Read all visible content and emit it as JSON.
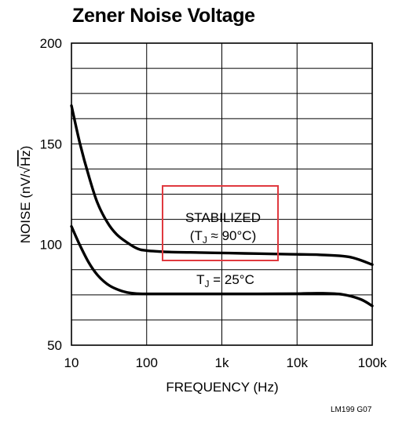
{
  "title": "Zener Noise Voltage",
  "footnote": "LM199 G07",
  "chart_data": {
    "type": "line",
    "title": "Zener Noise Voltage",
    "xlabel": "FREQUENCY (Hz)",
    "ylabel": "NOISE (nV/√Hz)",
    "xscale": "log",
    "xlim": [
      10,
      100000
    ],
    "ylim": [
      50,
      200
    ],
    "xticks": [
      10,
      100,
      1000,
      10000,
      100000
    ],
    "xtick_labels": [
      "10",
      "100",
      "1k",
      "10k",
      "100k"
    ],
    "yticks": [
      50,
      100,
      150,
      200
    ],
    "ytick_labels": [
      "50",
      "100",
      "150",
      "200"
    ],
    "grid": true,
    "series": [
      {
        "name": "STABILIZED (TJ ≈ 90°C)",
        "x": [
          10,
          13,
          17,
          22,
          30,
          40,
          55,
          75,
          100,
          200,
          500,
          1000,
          2000,
          5000,
          10000,
          20000,
          50000,
          100000
        ],
        "y": [
          169,
          150,
          134,
          121,
          111,
          105,
          101,
          98,
          97,
          96.3,
          96,
          95.8,
          95.6,
          95.3,
          95.1,
          94.9,
          93.8,
          90
        ]
      },
      {
        "name": "TJ = 25°C",
        "x": [
          10,
          13,
          17,
          22,
          30,
          40,
          55,
          75,
          100,
          300,
          1000,
          3000,
          10000,
          20000,
          40000,
          70000,
          100000
        ],
        "y": [
          109,
          99.5,
          91,
          85,
          80.3,
          77.8,
          76.2,
          75.6,
          75.5,
          75.5,
          75.5,
          75.5,
          75.6,
          75.8,
          75.2,
          72.8,
          69.5
        ]
      }
    ],
    "annotations": {
      "box_line1": "STABILIZED",
      "box_line2_pre": "(T",
      "box_line2_sub": "J",
      "box_line2_post": " ≈ 90°C)",
      "label_pre": "T",
      "label_sub": "J",
      "label_post": " = 25°C"
    }
  },
  "colors": {
    "curve": "#000000",
    "grid": "#000000",
    "box": "#e0393f"
  }
}
